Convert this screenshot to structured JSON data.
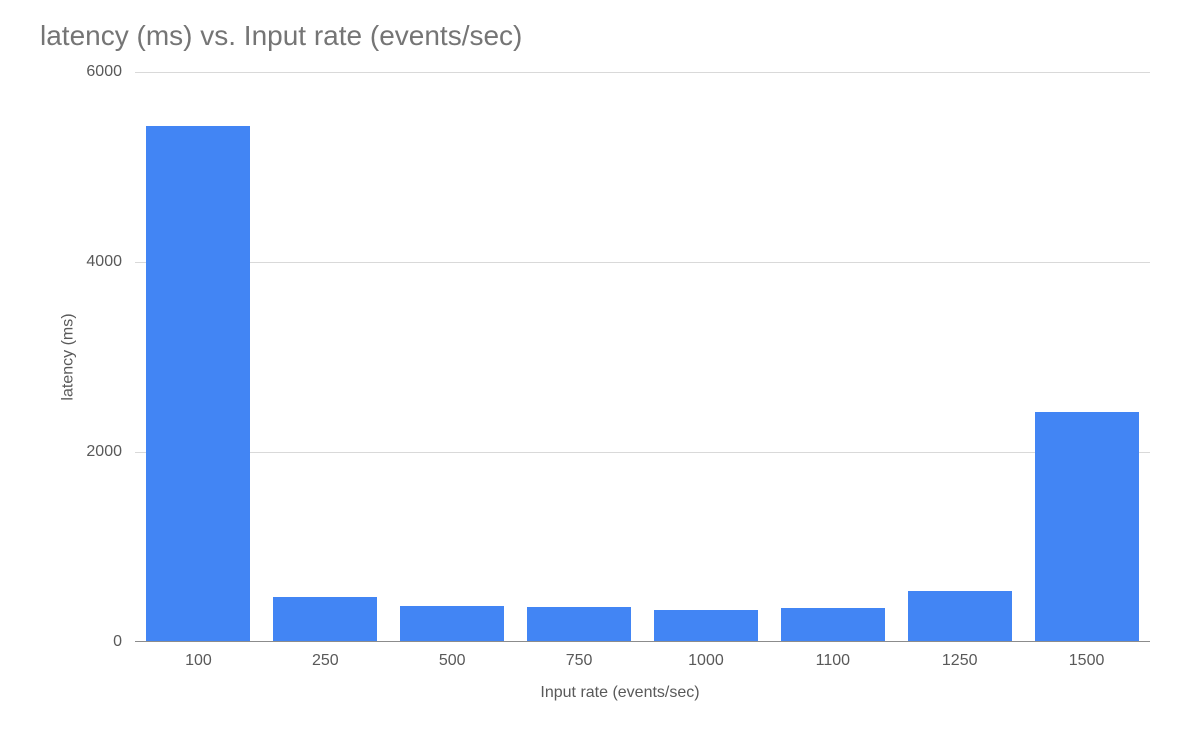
{
  "chart": {
    "type": "bar",
    "title": "latency (ms) vs. Input rate (events/sec)",
    "title_color": "#757575",
    "title_fontsize": 28,
    "xlabel": "Input rate (events/sec)",
    "ylabel": "latency (ms)",
    "label_color": "#595959",
    "label_fontsize": 16,
    "tick_fontsize": 16,
    "tick_color": "#595959",
    "background_color": "#ffffff",
    "grid_color": "#d9d9d9",
    "baseline_color": "#8c8c8c",
    "bar_color": "#4285f4",
    "bar_width": 0.82,
    "ylim": [
      0,
      6000
    ],
    "ytick_step": 2000,
    "yticks": [
      0,
      2000,
      4000,
      6000
    ],
    "categories": [
      "100",
      "250",
      "500",
      "750",
      "1000",
      "1100",
      "1250",
      "1500"
    ],
    "values": [
      5430,
      470,
      380,
      370,
      340,
      360,
      540,
      2420
    ]
  }
}
